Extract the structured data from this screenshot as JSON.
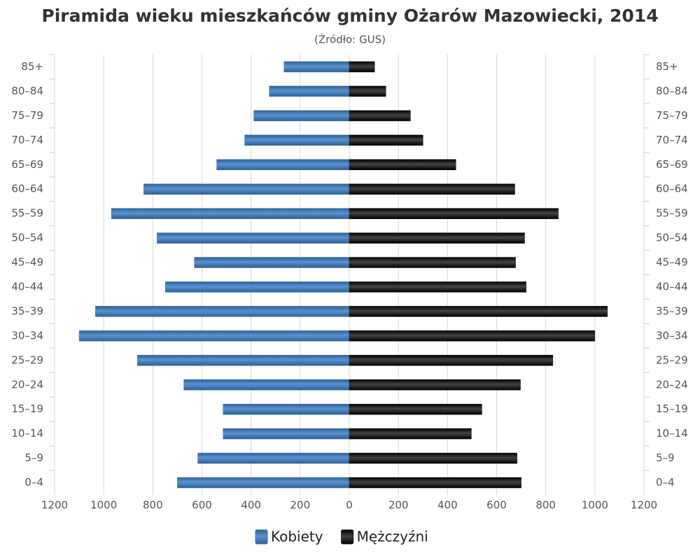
{
  "chart_data": {
    "type": "pyramid",
    "title": "Piramida wieku mieszkańców gminy Ożarów Mazowiecki, 2014",
    "subtitle": "(Źródło: GUS)",
    "categories": [
      "85+",
      "80–84",
      "75–79",
      "70–74",
      "65–69",
      "60–64",
      "55–59",
      "50–54",
      "45–49",
      "40–44",
      "35–39",
      "30–34",
      "25–29",
      "20–24",
      "15–19",
      "10–14",
      "5–9",
      "0–4"
    ],
    "series": [
      {
        "name": "Kobiety",
        "color": "#3a76b5",
        "values": [
          -266,
          -326,
          -389,
          -426,
          -540,
          -837,
          -969,
          -783,
          -631,
          -749,
          -1034,
          -1100,
          -863,
          -674,
          -514,
          -514,
          -617,
          -700
        ]
      },
      {
        "name": "Mężczyźni",
        "color": "#151515",
        "values": [
          103,
          149,
          249,
          300,
          434,
          674,
          851,
          714,
          677,
          720,
          1051,
          1000,
          829,
          697,
          540,
          497,
          683,
          700
        ]
      }
    ],
    "xlim": [
      -1200,
      1200
    ],
    "xticks": [
      {
        "value": -1200,
        "label": "1200"
      },
      {
        "value": -1000,
        "label": "1000"
      },
      {
        "value": -800,
        "label": "800"
      },
      {
        "value": -600,
        "label": "600"
      },
      {
        "value": -400,
        "label": "400"
      },
      {
        "value": -200,
        "label": "200"
      },
      0,
      200,
      400,
      600,
      800,
      1000,
      1200
    ],
    "grid": true
  }
}
